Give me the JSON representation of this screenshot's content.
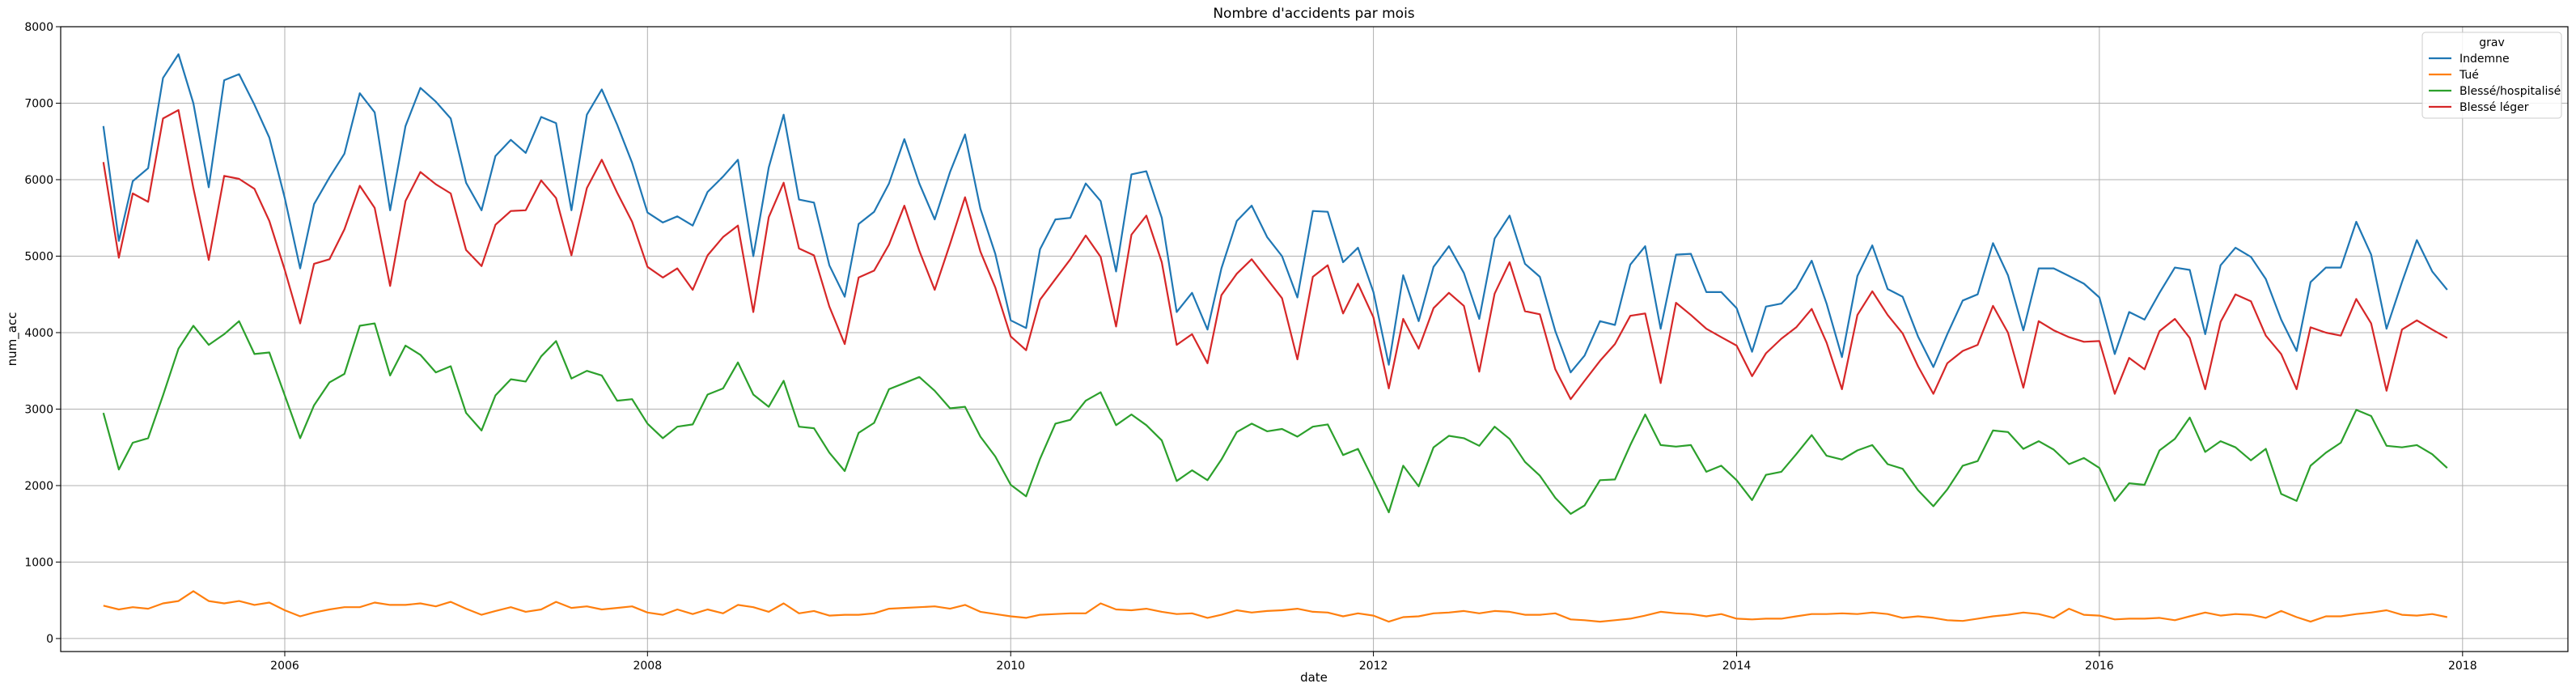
{
  "chart_data": {
    "type": "line",
    "title": "Nombre d'accidents par mois",
    "xlabel": "date",
    "ylabel": "num_acc",
    "x_range": [
      "2004-10-07",
      "2018-08-01"
    ],
    "ylim": [
      -170,
      8000
    ],
    "x_ticks": [
      "2006",
      "2008",
      "2010",
      "2012",
      "2014",
      "2016",
      "2018"
    ],
    "y_ticks": [
      0,
      1000,
      2000,
      3000,
      4000,
      5000,
      6000,
      7000,
      8000
    ],
    "grid": true,
    "legend_title": "grav",
    "legend_position": "top-right",
    "x": [
      "2005-01",
      "2005-02",
      "2005-03",
      "2005-04",
      "2005-05",
      "2005-06",
      "2005-07",
      "2005-08",
      "2005-09",
      "2005-10",
      "2005-11",
      "2005-12",
      "2006-01",
      "2006-02",
      "2006-03",
      "2006-04",
      "2006-05",
      "2006-06",
      "2006-07",
      "2006-08",
      "2006-09",
      "2006-10",
      "2006-11",
      "2006-12",
      "2007-01",
      "2007-02",
      "2007-03",
      "2007-04",
      "2007-05",
      "2007-06",
      "2007-07",
      "2007-08",
      "2007-09",
      "2007-10",
      "2007-11",
      "2007-12",
      "2008-01",
      "2008-02",
      "2008-03",
      "2008-04",
      "2008-05",
      "2008-06",
      "2008-07",
      "2008-08",
      "2008-09",
      "2008-10",
      "2008-11",
      "2008-12",
      "2009-01",
      "2009-02",
      "2009-03",
      "2009-04",
      "2009-05",
      "2009-06",
      "2009-07",
      "2009-08",
      "2009-09",
      "2009-10",
      "2009-11",
      "2009-12",
      "2010-01",
      "2010-02",
      "2010-03",
      "2010-04",
      "2010-05",
      "2010-06",
      "2010-07",
      "2010-08",
      "2010-09",
      "2010-10",
      "2010-11",
      "2010-12",
      "2011-01",
      "2011-02",
      "2011-03",
      "2011-04",
      "2011-05",
      "2011-06",
      "2011-07",
      "2011-08",
      "2011-09",
      "2011-10",
      "2011-11",
      "2011-12",
      "2012-01",
      "2012-02",
      "2012-03",
      "2012-04",
      "2012-05",
      "2012-06",
      "2012-07",
      "2012-08",
      "2012-09",
      "2012-10",
      "2012-11",
      "2012-12",
      "2013-01",
      "2013-02",
      "2013-03",
      "2013-04",
      "2013-05",
      "2013-06",
      "2013-07",
      "2013-08",
      "2013-09",
      "2013-10",
      "2013-11",
      "2013-12",
      "2014-01",
      "2014-02",
      "2014-03",
      "2014-04",
      "2014-05",
      "2014-06",
      "2014-07",
      "2014-08",
      "2014-09",
      "2014-10",
      "2014-11",
      "2014-12",
      "2015-01",
      "2015-02",
      "2015-03",
      "2015-04",
      "2015-05",
      "2015-06",
      "2015-07",
      "2015-08",
      "2015-09",
      "2015-10",
      "2015-11",
      "2015-12",
      "2016-01",
      "2016-02",
      "2016-03",
      "2016-04",
      "2016-05",
      "2016-06",
      "2016-07",
      "2016-08",
      "2016-09",
      "2016-10",
      "2016-11",
      "2016-12",
      "2017-01",
      "2017-02",
      "2017-03",
      "2017-04",
      "2017-05",
      "2017-06",
      "2017-07",
      "2017-08",
      "2017-09",
      "2017-10",
      "2017-11",
      "2017-12"
    ],
    "series": [
      {
        "name": "Indemne",
        "color": "#1f77b4",
        "values": [
          6700,
          5200,
          5980,
          6150,
          7330,
          7640,
          7000,
          5900,
          7300,
          7380,
          6980,
          6550,
          5760,
          4840,
          5680,
          6030,
          6340,
          7130,
          6880,
          5600,
          6700,
          7200,
          7020,
          6800,
          5960,
          5600,
          6310,
          6520,
          6350,
          6820,
          6740,
          5600,
          6850,
          7180,
          6720,
          6220,
          5570,
          5440,
          5520,
          5400,
          5840,
          6040,
          6260,
          5000,
          6160,
          6850,
          5740,
          5700,
          4880,
          4470,
          5420,
          5580,
          5950,
          6530,
          5950,
          5480,
          6100,
          6590,
          5620,
          5030,
          4160,
          4060,
          5090,
          5480,
          5500,
          5950,
          5720,
          4800,
          6070,
          6110,
          5500,
          4270,
          4520,
          4040,
          4840,
          5460,
          5660,
          5250,
          5000,
          4460,
          5590,
          5580,
          4920,
          5110,
          4530,
          3580,
          4750,
          4150,
          4860,
          5130,
          4780,
          4180,
          5230,
          5530,
          4900,
          4730,
          4020,
          3480,
          3700,
          4150,
          4100,
          4890,
          5130,
          4050,
          5020,
          5030,
          4530,
          4530,
          4320,
          3750,
          4340,
          4380,
          4580,
          4940,
          4380,
          3680,
          4740,
          5140,
          4570,
          4470,
          3950,
          3550,
          3980,
          4420,
          4500,
          5170,
          4750,
          4030,
          4840,
          4840,
          4740,
          4640,
          4460,
          3720,
          4270,
          4170,
          4520,
          4850,
          4820,
          3980,
          4880,
          5110,
          4990,
          4700,
          4170,
          3760,
          4660,
          4850,
          4850,
          5450,
          5020,
          4050,
          4660,
          5210,
          4800,
          4560
        ]
      },
      {
        "name": "Tué",
        "color": "#ff7f0e",
        "values": [
          430,
          380,
          410,
          390,
          460,
          490,
          620,
          490,
          460,
          490,
          440,
          470,
          370,
          290,
          340,
          380,
          410,
          410,
          470,
          440,
          440,
          460,
          420,
          480,
          390,
          310,
          360,
          410,
          350,
          380,
          480,
          400,
          420,
          380,
          400,
          420,
          340,
          310,
          380,
          320,
          380,
          330,
          440,
          410,
          350,
          460,
          330,
          360,
          300,
          310,
          310,
          330,
          390,
          400,
          410,
          420,
          390,
          440,
          350,
          320,
          290,
          270,
          310,
          320,
          330,
          330,
          460,
          380,
          370,
          390,
          350,
          320,
          330,
          270,
          310,
          370,
          340,
          360,
          370,
          390,
          350,
          340,
          290,
          330,
          300,
          220,
          280,
          290,
          330,
          340,
          360,
          330,
          360,
          350,
          310,
          310,
          330,
          250,
          240,
          220,
          240,
          260,
          300,
          350,
          330,
          320,
          290,
          320,
          260,
          250,
          260,
          260,
          290,
          320,
          320,
          330,
          320,
          340,
          320,
          270,
          290,
          270,
          240,
          230,
          260,
          290,
          310,
          340,
          320,
          270,
          390,
          310,
          300,
          250,
          260,
          260,
          270,
          240,
          290,
          340,
          300,
          320,
          310,
          270,
          360,
          280,
          220,
          290,
          290,
          320,
          340,
          370,
          310,
          300,
          320,
          280
        ]
      },
      {
        "name": "Blessé/hospitalisé",
        "color": "#2ca02c",
        "values": [
          2950,
          2210,
          2560,
          2620,
          3180,
          3790,
          4090,
          3840,
          3980,
          4150,
          3720,
          3740,
          3180,
          2620,
          3050,
          3350,
          3460,
          4090,
          4120,
          3440,
          3830,
          3710,
          3480,
          3560,
          2950,
          2720,
          3180,
          3390,
          3360,
          3690,
          3890,
          3400,
          3500,
          3440,
          3110,
          3130,
          2810,
          2620,
          2770,
          2800,
          3190,
          3270,
          3610,
          3190,
          3030,
          3370,
          2770,
          2750,
          2430,
          2190,
          2690,
          2820,
          3260,
          3340,
          3420,
          3240,
          3010,
          3030,
          2640,
          2380,
          2010,
          1860,
          2350,
          2810,
          2860,
          3110,
          3220,
          2790,
          2930,
          2790,
          2590,
          2060,
          2200,
          2070,
          2340,
          2700,
          2810,
          2710,
          2740,
          2640,
          2770,
          2800,
          2400,
          2480,
          2070,
          1650,
          2260,
          1990,
          2500,
          2650,
          2620,
          2520,
          2770,
          2610,
          2310,
          2130,
          1840,
          1630,
          1740,
          2070,
          2080,
          2530,
          2930,
          2530,
          2510,
          2530,
          2180,
          2260,
          2070,
          1810,
          2140,
          2180,
          2410,
          2660,
          2390,
          2340,
          2460,
          2530,
          2280,
          2220,
          1940,
          1730,
          1950,
          2260,
          2320,
          2720,
          2700,
          2480,
          2580,
          2470,
          2280,
          2360,
          2230,
          1800,
          2030,
          2010,
          2460,
          2610,
          2890,
          2440,
          2580,
          2500,
          2330,
          2480,
          1890,
          1800,
          2260,
          2430,
          2560,
          2990,
          2910,
          2520,
          2500,
          2530,
          2410,
          2230
        ]
      },
      {
        "name": "Blessé léger",
        "color": "#d62728",
        "values": [
          6230,
          4980,
          5820,
          5710,
          6800,
          6910,
          5890,
          4950,
          6050,
          6010,
          5880,
          5460,
          4820,
          4120,
          4900,
          4960,
          5350,
          5920,
          5630,
          4610,
          5720,
          6100,
          5940,
          5820,
          5080,
          4870,
          5410,
          5590,
          5600,
          5990,
          5760,
          5010,
          5890,
          6260,
          5830,
          5450,
          4860,
          4720,
          4840,
          4560,
          5010,
          5250,
          5400,
          4270,
          5510,
          5960,
          5100,
          5010,
          4340,
          3850,
          4720,
          4810,
          5150,
          5660,
          5070,
          4560,
          5160,
          5770,
          5060,
          4590,
          3950,
          3770,
          4430,
          4700,
          4960,
          5270,
          4990,
          4080,
          5280,
          5530,
          4920,
          3840,
          3980,
          3600,
          4490,
          4770,
          4960,
          4700,
          4450,
          3650,
          4730,
          4880,
          4250,
          4640,
          4200,
          3270,
          4180,
          3790,
          4320,
          4520,
          4350,
          3490,
          4510,
          4920,
          4280,
          4240,
          3520,
          3130,
          3370,
          3630,
          3850,
          4220,
          4250,
          3340,
          4390,
          4230,
          4050,
          3940,
          3830,
          3430,
          3730,
          3920,
          4070,
          4310,
          3870,
          3260,
          4230,
          4540,
          4230,
          3990,
          3560,
          3200,
          3600,
          3760,
          3840,
          4350,
          4000,
          3280,
          4150,
          4030,
          3940,
          3880,
          3890,
          3200,
          3670,
          3520,
          4020,
          4180,
          3930,
          3260,
          4140,
          4500,
          4410,
          3960,
          3720,
          3260,
          4070,
          4000,
          3960,
          4440,
          4120,
          3240,
          4040,
          4160,
          4040,
          3930
        ]
      }
    ]
  }
}
